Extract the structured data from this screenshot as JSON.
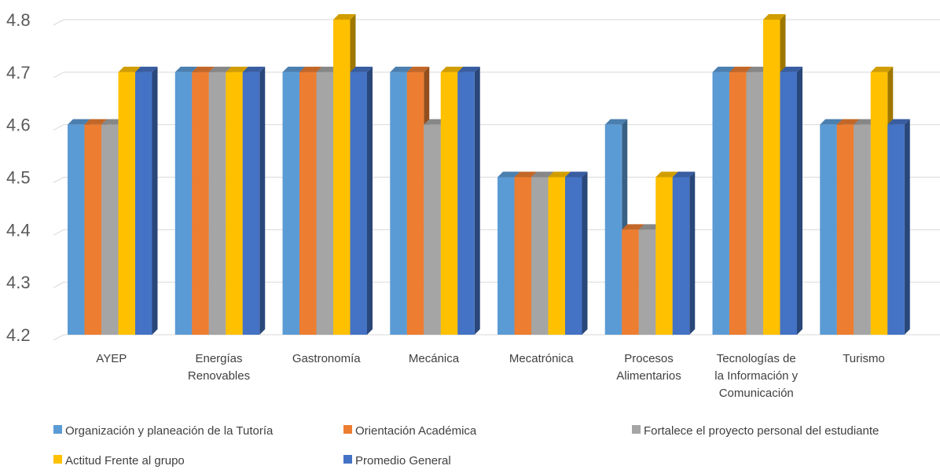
{
  "chart_data": {
    "type": "bar",
    "title": "",
    "xlabel": "",
    "ylabel": "",
    "ylim": [
      4.2,
      4.8
    ],
    "yticks": [
      4.2,
      4.3,
      4.4,
      4.5,
      4.6,
      4.7,
      4.8
    ],
    "grid": true,
    "legend_position": "bottom",
    "categories": [
      [
        "AYEP"
      ],
      [
        "Energías",
        "Renovables"
      ],
      [
        "Gastronomía"
      ],
      [
        "Mecánica"
      ],
      [
        "Mecatrónica"
      ],
      [
        "Procesos",
        "Alimentarios"
      ],
      [
        "Tecnologías de",
        "la Información y",
        "Comunicación"
      ],
      [
        "Turismo"
      ]
    ],
    "series": [
      {
        "name": "Organización y planeación de la Tutoría",
        "color": "#5B9BD5",
        "values": [
          4.6,
          4.7,
          4.7,
          4.7,
          4.5,
          4.6,
          4.7,
          4.6
        ]
      },
      {
        "name": "Orientación Académica",
        "color": "#ED7D31",
        "values": [
          4.6,
          4.7,
          4.7,
          4.7,
          4.5,
          4.4,
          4.7,
          4.6
        ]
      },
      {
        "name": "Fortalece el proyecto personal del estudiante",
        "color": "#A5A5A5",
        "values": [
          4.6,
          4.7,
          4.7,
          4.6,
          4.5,
          4.4,
          4.7,
          4.6
        ]
      },
      {
        "name": "Actitud Frente al grupo",
        "color": "#FFC000",
        "values": [
          4.7,
          4.7,
          4.8,
          4.7,
          4.5,
          4.5,
          4.8,
          4.7
        ]
      },
      {
        "name": "Promedio General",
        "color": "#4472C4",
        "values": [
          4.7,
          4.7,
          4.7,
          4.7,
          4.5,
          4.5,
          4.7,
          4.6
        ]
      }
    ]
  }
}
